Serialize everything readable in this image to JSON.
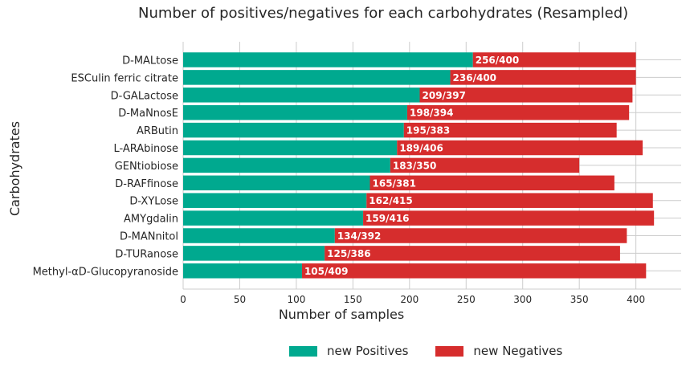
{
  "chart_data": {
    "type": "bar",
    "orientation": "horizontal",
    "stacked": true,
    "title": "Number of positives/negatives for each carbohydrates (Resampled)",
    "xlabel": "Number of samples",
    "ylabel": "Carbohydrates",
    "xlim": [
      0,
      440
    ],
    "xticks": [
      0,
      50,
      100,
      150,
      200,
      250,
      300,
      350,
      400
    ],
    "grid": true,
    "legend_position": "bottom-center",
    "categories": [
      "D-MALtose",
      "ESCulin ferric citrate",
      "D-GALactose",
      "D-MaNnosE",
      "ARButin",
      "L-ARAbinose",
      "GENtiobiose",
      "D-RAFfinose",
      "D-XYLose",
      "AMYgdalin",
      "D-MANnitol",
      "D-TURanose",
      "Methyl-αD-Glucopyranoside"
    ],
    "series": [
      {
        "name": "new Positives",
        "color": "#00a98f",
        "values": [
          256,
          236,
          209,
          198,
          195,
          189,
          183,
          165,
          162,
          159,
          134,
          125,
          105
        ]
      },
      {
        "name": "new Negatives",
        "color": "#d62d2d",
        "values": [
          144,
          164,
          188,
          196,
          188,
          217,
          167,
          216,
          253,
          257,
          258,
          261,
          304
        ]
      }
    ],
    "totals": [
      400,
      400,
      397,
      394,
      383,
      406,
      350,
      381,
      415,
      416,
      392,
      386,
      409
    ],
    "data_labels": [
      "256/400",
      "236/400",
      "209/397",
      "198/394",
      "195/383",
      "189/406",
      "183/350",
      "165/381",
      "162/415",
      "159/416",
      "134/392",
      "125/386",
      "105/409"
    ]
  }
}
